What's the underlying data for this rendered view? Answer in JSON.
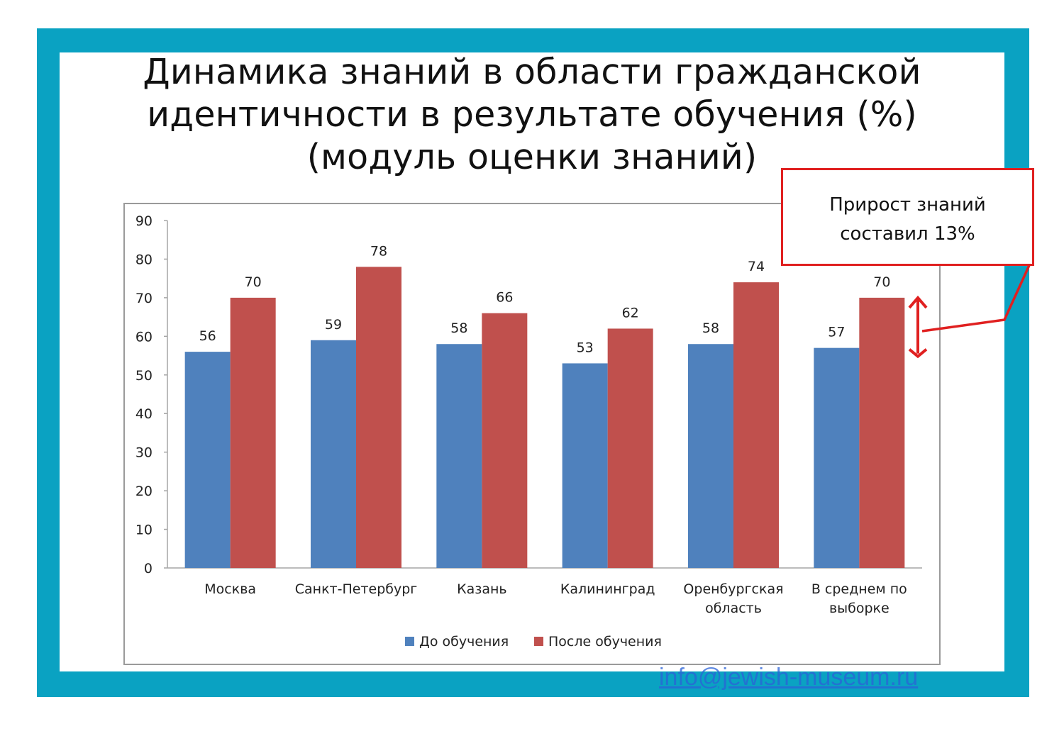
{
  "title_lines": [
    "Динамика знаний в области гражданской",
    "идентичности в результате обучения (%)",
    "(модуль оценки знаний)"
  ],
  "callout": {
    "lines": [
      "Прирост знаний",
      "составил 13%"
    ],
    "border_color": "#e02020"
  },
  "footer": {
    "link_text": "info@jewish-museum.ru"
  },
  "colors": {
    "frame": "#0aa2c2",
    "before": "#4f81bd",
    "after": "#c0504d",
    "annotation": "#e02020"
  },
  "chart_data": {
    "type": "bar",
    "categories": [
      [
        "Москва"
      ],
      [
        "Санкт-Петербург"
      ],
      [
        "Казань"
      ],
      [
        "Калининград"
      ],
      [
        "Оренбургская",
        "область"
      ],
      [
        "В среднем по",
        "выборке"
      ]
    ],
    "series": [
      {
        "name": "До обучения",
        "values": [
          56,
          59,
          58,
          53,
          58,
          57
        ],
        "color": "#4f81bd"
      },
      {
        "name": "После обучения",
        "values": [
          70,
          78,
          66,
          62,
          74,
          70
        ],
        "color": "#c0504d"
      }
    ],
    "yticks": [
      0,
      10,
      20,
      30,
      40,
      50,
      60,
      70,
      80,
      90
    ],
    "ylim": [
      0,
      90
    ],
    "grid": false,
    "legend_position": "bottom",
    "annotation": {
      "category_index": 5,
      "from_value": 57,
      "to_value": 70
    }
  }
}
